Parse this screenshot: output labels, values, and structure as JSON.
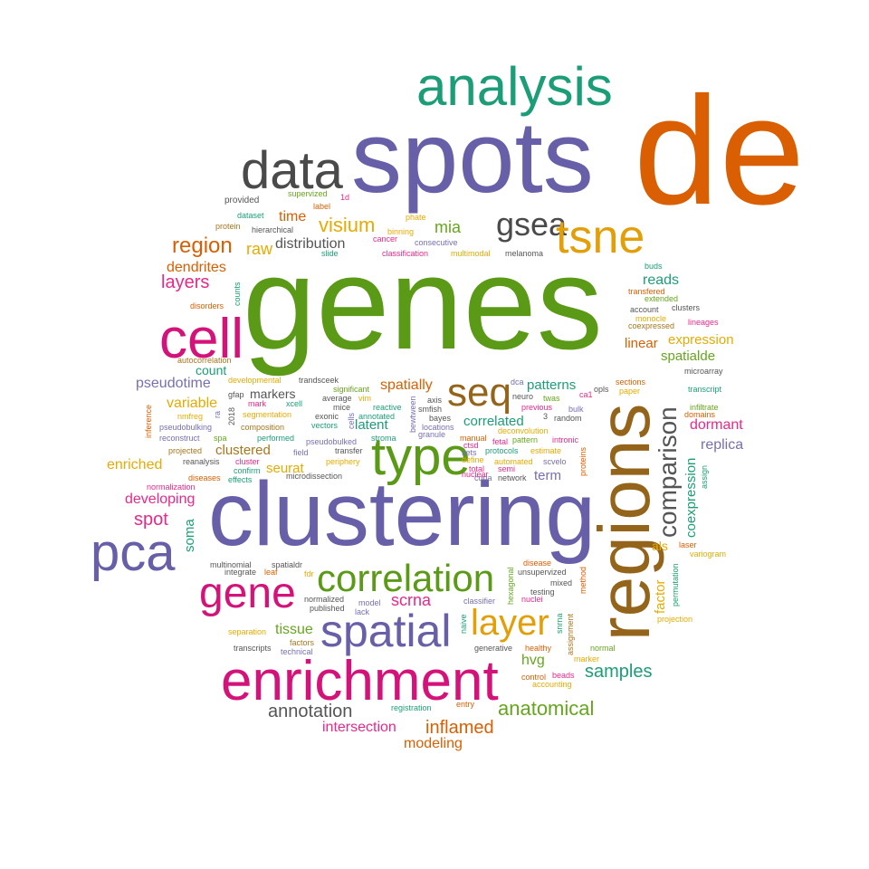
{
  "words": [
    {
      "text": "de",
      "color": "#d95f02"
    },
    {
      "text": "spots",
      "color": "#675fa8"
    },
    {
      "text": "analysis",
      "color": "#1b9e77"
    },
    {
      "text": "data",
      "color": "#4a4a4a"
    },
    {
      "text": "genes",
      "color": "#5a9a16"
    },
    {
      "text": "gsea",
      "color": "#4a4a4a"
    },
    {
      "text": "tsne",
      "color": "#e39f08"
    },
    {
      "text": "cell",
      "color": "#d4137a"
    },
    {
      "text": "clustering",
      "color": "#675fa8"
    },
    {
      "text": "regions",
      "color": "#93641a"
    },
    {
      "text": "type",
      "color": "#5a9a16"
    },
    {
      "text": "seq",
      "color": "#93641a"
    },
    {
      "text": "pca",
      "color": "#675fa8"
    },
    {
      "text": "gene",
      "color": "#d4137a"
    },
    {
      "text": "enrichment",
      "color": "#d4137a"
    },
    {
      "text": "spatial",
      "color": "#675fa8"
    },
    {
      "text": "correlation",
      "color": "#5a9a16"
    },
    {
      "text": "layer",
      "color": "#e39f08"
    },
    {
      "text": "comparison",
      "color": "#555555"
    },
    {
      "text": "region",
      "color": "#d95f02"
    },
    {
      "text": "visium",
      "color": "#e6ab02"
    },
    {
      "text": "time",
      "color": "#d95f02"
    },
    {
      "text": "mia",
      "color": "#66a61e"
    },
    {
      "text": "raw",
      "color": "#e6ab02"
    },
    {
      "text": "distribution",
      "color": "#555555"
    },
    {
      "text": "dendrites",
      "color": "#d95f02"
    },
    {
      "text": "layers",
      "color": "#e7298a"
    },
    {
      "text": "reads",
      "color": "#1b9e77"
    },
    {
      "text": "linear",
      "color": "#d95f02"
    },
    {
      "text": "expression",
      "color": "#e6ab02"
    },
    {
      "text": "spatialde",
      "color": "#66a61e"
    },
    {
      "text": "count",
      "color": "#1b9e77"
    },
    {
      "text": "pseudotime",
      "color": "#7570b3"
    },
    {
      "text": "spatially",
      "color": "#d95f02"
    },
    {
      "text": "patterns",
      "color": "#1b9e77"
    },
    {
      "text": "markers",
      "color": "#555555"
    },
    {
      "text": "variable",
      "color": "#e6ab02"
    },
    {
      "text": "latent",
      "color": "#1b9e77"
    },
    {
      "text": "correlated",
      "color": "#1b9e77"
    },
    {
      "text": "clustered",
      "color": "#a6761d"
    },
    {
      "text": "enriched",
      "color": "#e6ab02"
    },
    {
      "text": "seurat",
      "color": "#e6ab02"
    },
    {
      "text": "developing",
      "color": "#e7298a"
    },
    {
      "text": "spot",
      "color": "#e7298a"
    },
    {
      "text": "soma",
      "color": "#1b9e77"
    },
    {
      "text": "scrna",
      "color": "#e7298a"
    },
    {
      "text": "tissue",
      "color": "#66a61e"
    },
    {
      "text": "hvg",
      "color": "#66a61e"
    },
    {
      "text": "samples",
      "color": "#1b9e77"
    },
    {
      "text": "annotation",
      "color": "#555555"
    },
    {
      "text": "anatomical",
      "color": "#66a61e"
    },
    {
      "text": "intersection",
      "color": "#e7298a"
    },
    {
      "text": "inflamed",
      "color": "#d95f02"
    },
    {
      "text": "modeling",
      "color": "#d95f02"
    },
    {
      "text": "term",
      "color": "#7570b3"
    },
    {
      "text": "dormant",
      "color": "#e7298a"
    },
    {
      "text": "replica",
      "color": "#7570b3"
    },
    {
      "text": "coexpression",
      "color": "#1b9e77"
    },
    {
      "text": "factor",
      "color": "#e6ab02"
    },
    {
      "text": "als",
      "color": "#e6ab02"
    },
    {
      "text": "provided",
      "color": "#555555"
    },
    {
      "text": "supervized",
      "color": "#66a61e"
    },
    {
      "text": "1d",
      "color": "#e7298a"
    },
    {
      "text": "label",
      "color": "#d95f02"
    },
    {
      "text": "dataset",
      "color": "#1b9e77"
    },
    {
      "text": "protein",
      "color": "#a6761d"
    },
    {
      "text": "hierarchical",
      "color": "#555555"
    },
    {
      "text": "phate",
      "color": "#e6ab02"
    },
    {
      "text": "binning",
      "color": "#e6ab02"
    },
    {
      "text": "cancer",
      "color": "#e7298a"
    },
    {
      "text": "consecutive",
      "color": "#7570b3"
    },
    {
      "text": "slide",
      "color": "#1b9e77"
    },
    {
      "text": "classification",
      "color": "#e7298a"
    },
    {
      "text": "multimodal",
      "color": "#e6ab02"
    },
    {
      "text": "melanoma",
      "color": "#555555"
    },
    {
      "text": "buds",
      "color": "#1b9e77"
    },
    {
      "text": "transfered",
      "color": "#d95f02"
    },
    {
      "text": "extended",
      "color": "#66a61e"
    },
    {
      "text": "account",
      "color": "#555555"
    },
    {
      "text": "clusters",
      "color": "#555555"
    },
    {
      "text": "monocle",
      "color": "#e6ab02"
    },
    {
      "text": "coexpressed",
      "color": "#a6761d"
    },
    {
      "text": "lineages",
      "color": "#e7298a"
    },
    {
      "text": "counts",
      "color": "#1b9e77"
    },
    {
      "text": "disorders",
      "color": "#d95f02"
    },
    {
      "text": "autocorrelation",
      "color": "#a6761d"
    },
    {
      "text": "developmental",
      "color": "#e6ab02"
    },
    {
      "text": "trandsceek",
      "color": "#555555"
    },
    {
      "text": "significant",
      "color": "#66a61e"
    },
    {
      "text": "dca",
      "color": "#7570b3"
    },
    {
      "text": "opls",
      "color": "#555555"
    },
    {
      "text": "sections",
      "color": "#d95f02"
    },
    {
      "text": "paper",
      "color": "#e6ab02"
    },
    {
      "text": "microarray",
      "color": "#555555"
    },
    {
      "text": "transcript",
      "color": "#1b9e77"
    },
    {
      "text": "infiltrate",
      "color": "#66a61e"
    },
    {
      "text": "domains",
      "color": "#d95f02"
    },
    {
      "text": "gfap",
      "color": "#555555"
    },
    {
      "text": "average",
      "color": "#555555"
    },
    {
      "text": "vim",
      "color": "#e6ab02"
    },
    {
      "text": "neuro",
      "color": "#555555"
    },
    {
      "text": "twas",
      "color": "#66a61e"
    },
    {
      "text": "ca1",
      "color": "#e7298a"
    },
    {
      "text": "axis",
      "color": "#555555"
    },
    {
      "text": "smfish",
      "color": "#555555"
    },
    {
      "text": "bayes",
      "color": "#555555"
    },
    {
      "text": "previous",
      "color": "#e7298a"
    },
    {
      "text": "bulk",
      "color": "#7570b3"
    },
    {
      "text": "random",
      "color": "#555555"
    },
    {
      "text": "inference",
      "color": "#d95f02"
    },
    {
      "text": "nmfreg",
      "color": "#e6ab02"
    },
    {
      "text": "pseudobulking",
      "color": "#7570b3"
    },
    {
      "text": "reconstruct",
      "color": "#7570b3"
    },
    {
      "text": "mark",
      "color": "#e7298a"
    },
    {
      "text": "xcell",
      "color": "#1b9e77"
    },
    {
      "text": "segmentation",
      "color": "#e6ab02"
    },
    {
      "text": "composition",
      "color": "#a6761d"
    },
    {
      "text": "spa",
      "color": "#66a61e"
    },
    {
      "text": "performed",
      "color": "#1b9e77"
    },
    {
      "text": "exonic",
      "color": "#555555"
    },
    {
      "text": "mice",
      "color": "#555555"
    },
    {
      "text": "vectors",
      "color": "#1b9e77"
    },
    {
      "text": "pseudobulked",
      "color": "#7570b3"
    },
    {
      "text": "reactive",
      "color": "#1b9e77"
    },
    {
      "text": "annotated",
      "color": "#1b9e77"
    },
    {
      "text": "stroma",
      "color": "#1b9e77"
    },
    {
      "text": "granule",
      "color": "#7570b3"
    },
    {
      "text": "locations",
      "color": "#7570b3"
    },
    {
      "text": "bewtween",
      "color": "#7570b3"
    },
    {
      "text": "manual",
      "color": "#d95f02"
    },
    {
      "text": "fetal",
      "color": "#e7298a"
    },
    {
      "text": "pattern",
      "color": "#66a61e"
    },
    {
      "text": "intronic",
      "color": "#e7298a"
    },
    {
      "text": "deconvolution",
      "color": "#e6ab02"
    },
    {
      "text": "ctsd",
      "color": "#e7298a"
    },
    {
      "text": "sets",
      "color": "#7570b3"
    },
    {
      "text": "protocols",
      "color": "#1b9e77"
    },
    {
      "text": "estimate",
      "color": "#e6ab02"
    },
    {
      "text": "define",
      "color": "#e6ab02"
    },
    {
      "text": "automated",
      "color": "#e6ab02"
    },
    {
      "text": "scvelo",
      "color": "#7570b3"
    },
    {
      "text": "total",
      "color": "#e7298a"
    },
    {
      "text": "semi",
      "color": "#e7298a"
    },
    {
      "text": "cdna",
      "color": "#7570b3"
    },
    {
      "text": "network",
      "color": "#555555"
    },
    {
      "text": "proteins",
      "color": "#d95f02"
    },
    {
      "text": "projected",
      "color": "#a6761d"
    },
    {
      "text": "field",
      "color": "#7570b3"
    },
    {
      "text": "transfer",
      "color": "#555555"
    },
    {
      "text": "reanalysis",
      "color": "#555555"
    },
    {
      "text": "cluster",
      "color": "#e7298a"
    },
    {
      "text": "periphery",
      "color": "#e6ab02"
    },
    {
      "text": "confirm",
      "color": "#1b9e77"
    },
    {
      "text": "diseases",
      "color": "#d95f02"
    },
    {
      "text": "effects",
      "color": "#1b9e77"
    },
    {
      "text": "microdissection",
      "color": "#555555"
    },
    {
      "text": "normalization",
      "color": "#e7298a"
    },
    {
      "text": "assign",
      "color": "#1b9e77"
    },
    {
      "text": "laser",
      "color": "#d95f02"
    },
    {
      "text": "variogram",
      "color": "#e6ab02"
    },
    {
      "text": "permutation",
      "color": "#1b9e77"
    },
    {
      "text": "projection",
      "color": "#e6ab02"
    },
    {
      "text": "multinomial",
      "color": "#555555"
    },
    {
      "text": "integrate",
      "color": "#555555"
    },
    {
      "text": "leaf",
      "color": "#d95f02"
    },
    {
      "text": "spatialdr",
      "color": "#555555"
    },
    {
      "text": "fdr",
      "color": "#e6ab02"
    },
    {
      "text": "disease",
      "color": "#d95f02"
    },
    {
      "text": "unsupervized",
      "color": "#555555"
    },
    {
      "text": "mixed",
      "color": "#555555"
    },
    {
      "text": "testing",
      "color": "#555555"
    },
    {
      "text": "nuclei",
      "color": "#e7298a"
    },
    {
      "text": "method",
      "color": "#d95f02"
    },
    {
      "text": "hexagonal",
      "color": "#66a61e"
    },
    {
      "text": "classifier",
      "color": "#7570b3"
    },
    {
      "text": "naive",
      "color": "#1b9e77"
    },
    {
      "text": "snrna",
      "color": "#1b9e77"
    },
    {
      "text": "assignment",
      "color": "#a6761d"
    },
    {
      "text": "normalized",
      "color": "#555555"
    },
    {
      "text": "published",
      "color": "#555555"
    },
    {
      "text": "model",
      "color": "#7570b3"
    },
    {
      "text": "lack",
      "color": "#7570b3"
    },
    {
      "text": "separation",
      "color": "#e6ab02"
    },
    {
      "text": "factors",
      "color": "#a6761d"
    },
    {
      "text": "transcripts",
      "color": "#555555"
    },
    {
      "text": "technical",
      "color": "#7570b3"
    },
    {
      "text": "generative",
      "color": "#555555"
    },
    {
      "text": "healthy",
      "color": "#d95f02"
    },
    {
      "text": "normal",
      "color": "#66a61e"
    },
    {
      "text": "marker",
      "color": "#e6ab02"
    },
    {
      "text": "control",
      "color": "#d95f02"
    },
    {
      "text": "beads",
      "color": "#e7298a"
    },
    {
      "text": "accounting",
      "color": "#e6ab02"
    },
    {
      "text": "registration",
      "color": "#1b9e77"
    },
    {
      "text": "entry",
      "color": "#d95f02"
    },
    {
      "text": "2018",
      "color": "#555555"
    },
    {
      "text": "ra",
      "color": "#7570b3"
    },
    {
      "text": "3",
      "color": "#555555"
    },
    {
      "text": "cells",
      "color": "#7570b3"
    },
    {
      "text": "nuclear",
      "color": "#e7298a"
    }
  ]
}
